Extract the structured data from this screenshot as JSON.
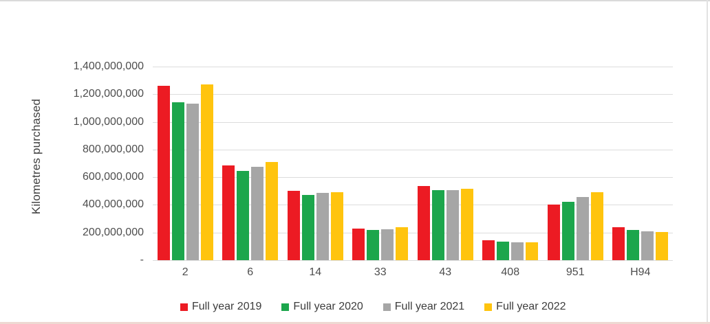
{
  "chart_data": {
    "type": "bar",
    "title": "",
    "xlabel": "",
    "ylabel": "Kilometres purchased",
    "ylim": [
      0,
      1400000000
    ],
    "grid": true,
    "legend_position": "bottom",
    "y_tick_labels": [
      "1,400,000,000",
      "1,200,000,000",
      "1,000,000,000",
      "800,000,000",
      "600,000,000",
      "400,000,000",
      "200,000,000",
      "-"
    ],
    "categories": [
      "2",
      "6",
      "14",
      "33",
      "43",
      "408",
      "951",
      "H94"
    ],
    "series": [
      {
        "name": "Full year 2019",
        "color": "#EC1B23",
        "values": [
          1260000000,
          685000000,
          500000000,
          228000000,
          535000000,
          143000000,
          400000000,
          240000000
        ]
      },
      {
        "name": "Full year 2020",
        "color": "#1CA64C",
        "values": [
          1140000000,
          645000000,
          470000000,
          216000000,
          505000000,
          133000000,
          420000000,
          220000000
        ]
      },
      {
        "name": "Full year 2021",
        "color": "#A6A6A6",
        "values": [
          1130000000,
          675000000,
          485000000,
          221000000,
          508000000,
          130000000,
          458000000,
          208000000
        ]
      },
      {
        "name": "Full year 2022",
        "color": "#FFC40E",
        "values": [
          1270000000,
          710000000,
          490000000,
          236000000,
          517000000,
          129000000,
          490000000,
          202000000
        ]
      }
    ]
  },
  "colors": {
    "gridline": "#dcdcdc",
    "axis_text": "#4d4d4d",
    "legend_text": "#3c3c3c"
  }
}
